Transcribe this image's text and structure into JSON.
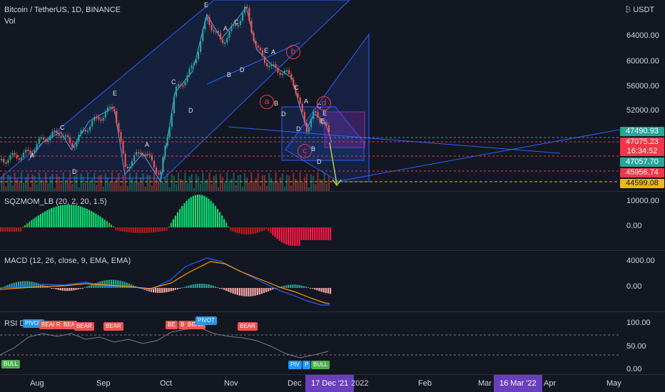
{
  "header": {
    "symbol": "Bitcoin / TetherUS, 1D, BINANCE",
    "vol_label": "Vol"
  },
  "currency": "USDT",
  "price_axis": {
    "ticks": [
      "64000.00",
      "60000.00",
      "56000.00",
      "52000.00"
    ]
  },
  "price_badges": [
    {
      "value": "47490.93",
      "color": "#26a69a"
    },
    {
      "value": "47075.23",
      "color": "#f23645"
    },
    {
      "value": "16:34:52",
      "color": "#f23645"
    },
    {
      "value": "47057.70",
      "color": "#26a69a"
    },
    {
      "value": "45956.74",
      "color": "#f23645"
    },
    {
      "value": "44599.08",
      "color": "#f0b90b"
    }
  ],
  "sqz": {
    "label": "SQZMOM_LB (20, 2, 20, 1.5)",
    "ticks": [
      "10000.00",
      "0.00"
    ]
  },
  "macd": {
    "label": "MACD (12, 26, close, 9, EMA, EMA)",
    "ticks": [
      "4000.00",
      "0.00"
    ]
  },
  "rsi": {
    "label": "RSI Di...",
    "ticks": [
      "100.00",
      "50.00",
      "0.00"
    ]
  },
  "wave_labels": [
    "E",
    "A",
    "C",
    "E",
    "C",
    "D",
    "A",
    "D",
    "C",
    "E",
    "A",
    "B",
    "D",
    "C",
    "E",
    "A",
    "B",
    "D",
    "B",
    "D",
    "A",
    "C",
    "D",
    "E"
  ],
  "circle_labels": [
    "a",
    "b",
    "c",
    "d"
  ],
  "tags": [
    {
      "text": "PIVOT",
      "type": "pivot"
    },
    {
      "text": "BEAR",
      "type": "bear"
    },
    {
      "text": "R",
      "type": "bear"
    },
    {
      "text": "BEA",
      "type": "bear"
    },
    {
      "text": "BEAR",
      "type": "bear"
    },
    {
      "text": "BEAR",
      "type": "bear"
    },
    {
      "text": "BE",
      "type": "bear"
    },
    {
      "text": "B",
      "type": "bear"
    },
    {
      "text": "BEAR",
      "type": "bear"
    },
    {
      "text": "PIVOT",
      "type": "pivot"
    },
    {
      "text": "BEAR",
      "type": "bear"
    },
    {
      "text": "BULL",
      "type": "bull"
    },
    {
      "text": "PIV",
      "type": "pivot"
    },
    {
      "text": "P",
      "type": "pivot"
    },
    {
      "text": "BULL",
      "type": "bull"
    }
  ],
  "time_axis": {
    "ticks": [
      "Aug",
      "Sep",
      "Oct",
      "Nov",
      "Dec",
      "2022",
      "Feb",
      "Mar",
      "Apr",
      "May"
    ],
    "cursor": "17 Dec '21",
    "cursor2": "16 Mar '22"
  }
}
